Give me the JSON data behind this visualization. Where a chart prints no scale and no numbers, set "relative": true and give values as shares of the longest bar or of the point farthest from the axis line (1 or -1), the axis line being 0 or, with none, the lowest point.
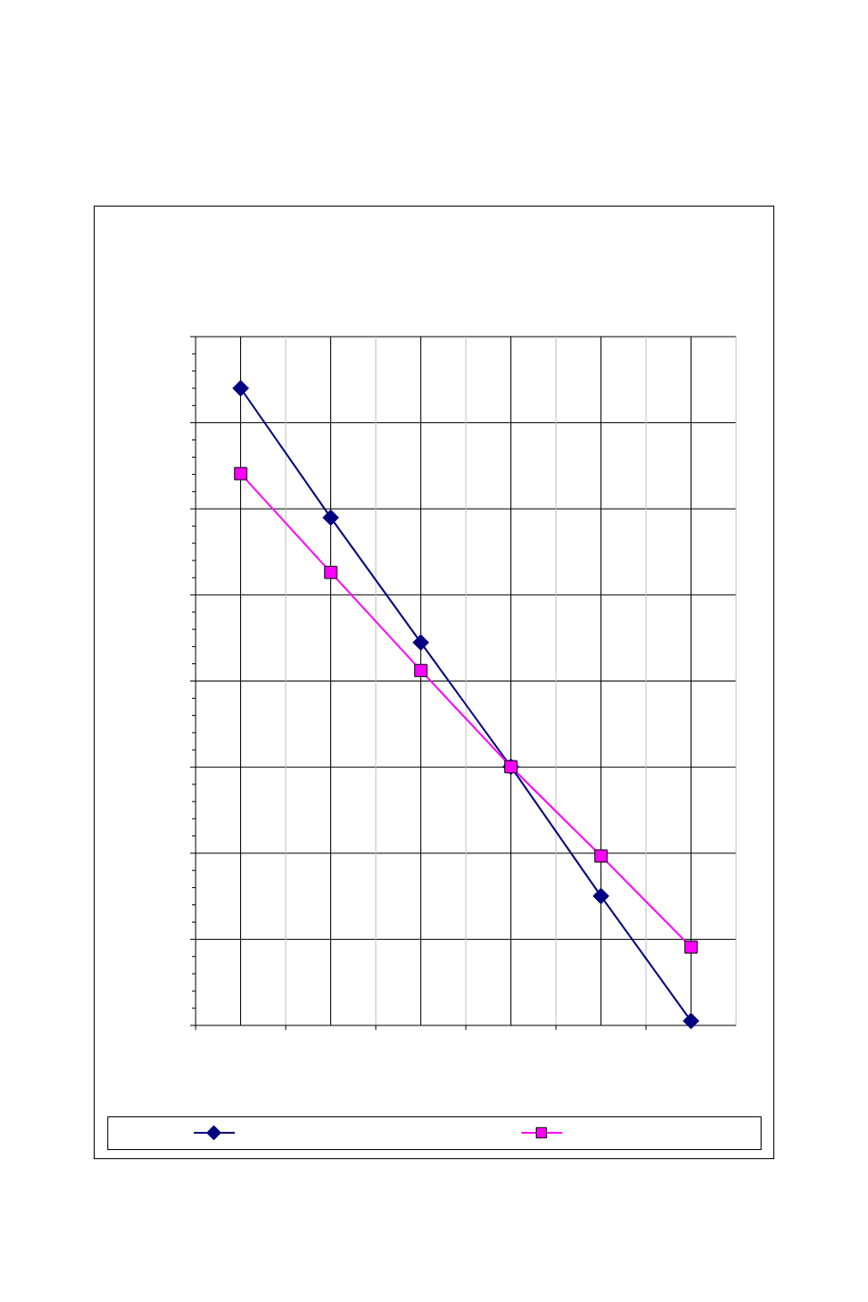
{
  "chart_data": {
    "type": "line",
    "relative": true,
    "categories": [
      null,
      null,
      null,
      null,
      null,
      null
    ],
    "grid": true,
    "series": [
      {
        "color": "#000080",
        "marker": "diamond",
        "values": [
          1,
          0.797,
          0.601,
          0.406,
          0.203,
          0.007
        ]
      },
      {
        "color": "#ff00ff",
        "marker": "square",
        "values": [
          0.866,
          0.711,
          0.557,
          0.406,
          0.266,
          0.123
        ]
      }
    ]
  }
}
